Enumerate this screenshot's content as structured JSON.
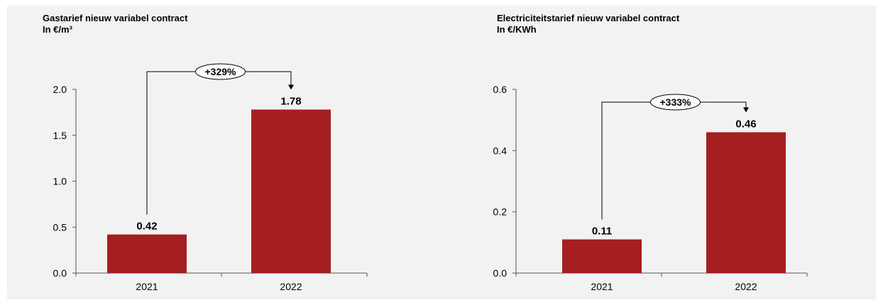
{
  "colors": {
    "bar": "#a51f21",
    "text": "#000000",
    "axis": "#555555"
  },
  "chart_data": [
    {
      "type": "bar",
      "title": "Gastarief nieuw variabel contract",
      "subtitle": "In €/m³",
      "categories": [
        "2021",
        "2022"
      ],
      "values": [
        0.42,
        1.78
      ],
      "value_labels": [
        "0.42",
        "1.78"
      ],
      "ylim": [
        0,
        2.0
      ],
      "yticks": [
        0.0,
        0.5,
        1.0,
        1.5,
        2.0
      ],
      "ytick_labels": [
        "0.0",
        "0.5",
        "1.0",
        "1.5",
        "2.0"
      ],
      "grid": false,
      "annotation": {
        "label": "+329%",
        "from": "2021",
        "to": "2022"
      }
    },
    {
      "type": "bar",
      "title": "Electriciteitstarief nieuw variabel contract",
      "subtitle": "In €/KWh",
      "categories": [
        "2021",
        "2022"
      ],
      "values": [
        0.11,
        0.46
      ],
      "value_labels": [
        "0.11",
        "0.46"
      ],
      "ylim": [
        0,
        0.6
      ],
      "yticks": [
        0.0,
        0.2,
        0.4,
        0.6
      ],
      "ytick_labels": [
        "0.0",
        "0.2",
        "0.4",
        "0.6"
      ],
      "grid": false,
      "annotation": {
        "label": "+333%",
        "from": "2021",
        "to": "2022"
      }
    }
  ]
}
